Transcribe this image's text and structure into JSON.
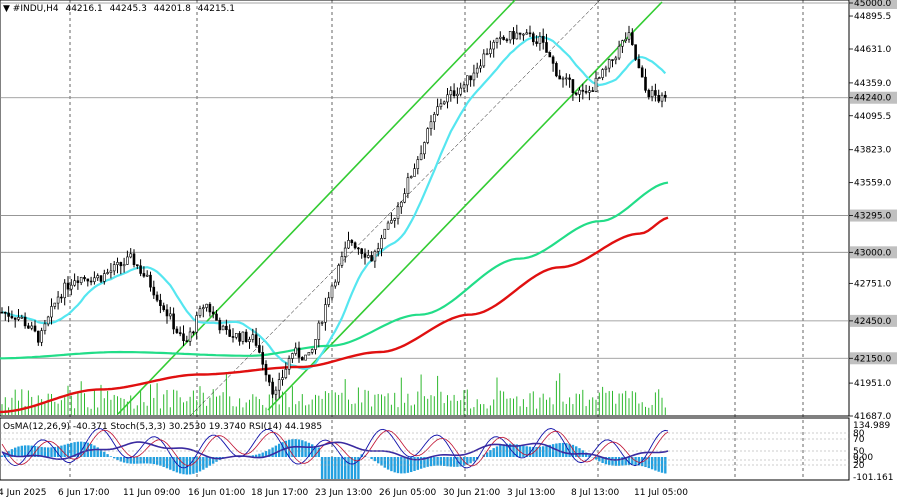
{
  "header": {
    "symbol": "#INDU,H4",
    "open": "44216.1",
    "high": "44245.3",
    "low": "44201.8",
    "close": "44215.1"
  },
  "indicators_label": "OsMA(12,26,9) -40.371  Stoch(5,3,3) 30.2530 19.3740  RSI(14) 44.1985",
  "colors": {
    "background": "#ffffff",
    "candle": "#000000",
    "volume": "#2db82d",
    "ma_fast": "#55e6f0",
    "ma_mid": "#22dd88",
    "ma_slow": "#e01010",
    "channel": "#33cc33",
    "osma": "#22a0e0",
    "stoch_main": "#1010aa",
    "stoch_signal": "#c01030",
    "rsi": "#3a2aa0"
  },
  "chart_data": {
    "type": "candlestick",
    "timeframe": "H4",
    "price_axis": {
      "min": 41687.0,
      "max": 45000.0,
      "ticks": [
        "45000.0",
        "44895.5",
        "44631.0",
        "44359.0",
        "44240.0",
        "44095.5",
        "43823.0",
        "43559.0",
        "43295.0",
        "43000.0",
        "42751.0",
        "42450.0",
        "42150.0",
        "41951.0",
        "41687.0"
      ]
    },
    "level_lines": [
      "45000.0",
      "44240.0",
      "43295.0",
      "43000.0",
      "42450.0",
      "42150.0"
    ],
    "subwindow_axis": [
      "134.989",
      "80",
      "70",
      "50",
      "30",
      "20",
      "0.00",
      "-101.161"
    ],
    "x_ticks": [
      "4 Jun 2025",
      "6 Jun 17:00",
      "11 Jun 09:00",
      "16 Jun 01:00",
      "18 Jun 17:00",
      "23 Jun 13:00",
      "26 Jun 05:00",
      "30 Jun 21:00",
      "3 Jul 13:00",
      "8 Jul 13:00",
      "11 Jul 05:00"
    ],
    "last_close": 44215.1,
    "moving_averages": [
      {
        "color": "#55e6f0",
        "period_class": "fast"
      },
      {
        "color": "#22dd88",
        "period_class": "mid"
      },
      {
        "color": "#e01010",
        "period_class": "slow"
      }
    ]
  }
}
